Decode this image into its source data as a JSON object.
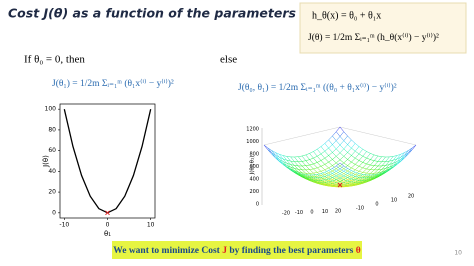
{
  "header": {
    "title": "Cost J(θ) as a function of the parameters θ"
  },
  "formula_box": {
    "hypothesis": "h_θ(x) = θ₀ + θ₁x",
    "cost": "J(θ) = 1/2m Σᵢ₌₁ᵐ (h_θ(x⁽ⁱ⁾) − y⁽ⁱ⁾)²"
  },
  "left": {
    "condition": "If θ₀ = 0, then",
    "formula": "J(θ₁) = 1/2m Σᵢ₌₁ᵐ (θ₁x⁽ⁱ⁾ − y⁽ⁱ⁾)²",
    "plot": {
      "type": "line",
      "xlabel": "θ₁",
      "ylabel": "J(θ)",
      "color": "#000000",
      "x": [
        -10,
        -8,
        -6,
        -4,
        -2,
        0,
        2,
        4,
        6,
        8,
        10
      ],
      "values": [
        100,
        64,
        36,
        16,
        4,
        0,
        4,
        16,
        36,
        64,
        100
      ],
      "xlim": [
        -11,
        11
      ],
      "ylim": [
        -5,
        105
      ],
      "xticks": [
        -10,
        0,
        10
      ],
      "yticks": [
        0,
        20,
        40,
        60,
        80,
        100
      ],
      "minimum": {
        "x": 0,
        "value": 0,
        "color": "#e02020"
      }
    }
  },
  "right": {
    "condition": "else",
    "formula": "J(θ₀, θ₁) = 1/2m Σᵢ₌₁ᵐ ((θ₀ + θ₁x⁽ⁱ⁾) − y⁽ⁱ⁾)²",
    "plot": {
      "zlabel": "J(θ₀,θ₁)",
      "zticks": [
        "0",
        "200",
        "400",
        "600",
        "800",
        "1000",
        "1200"
      ],
      "x0ticks": [
        "-20",
        "-10",
        "0",
        "10",
        "20"
      ],
      "x1ticks": [
        "-10",
        "0",
        "10",
        "20"
      ]
    }
  },
  "footer": {
    "parts": [
      "We want to minimize Cost ",
      "J",
      " by finding the best parameters ",
      "θ"
    ]
  },
  "page_number": "10"
}
